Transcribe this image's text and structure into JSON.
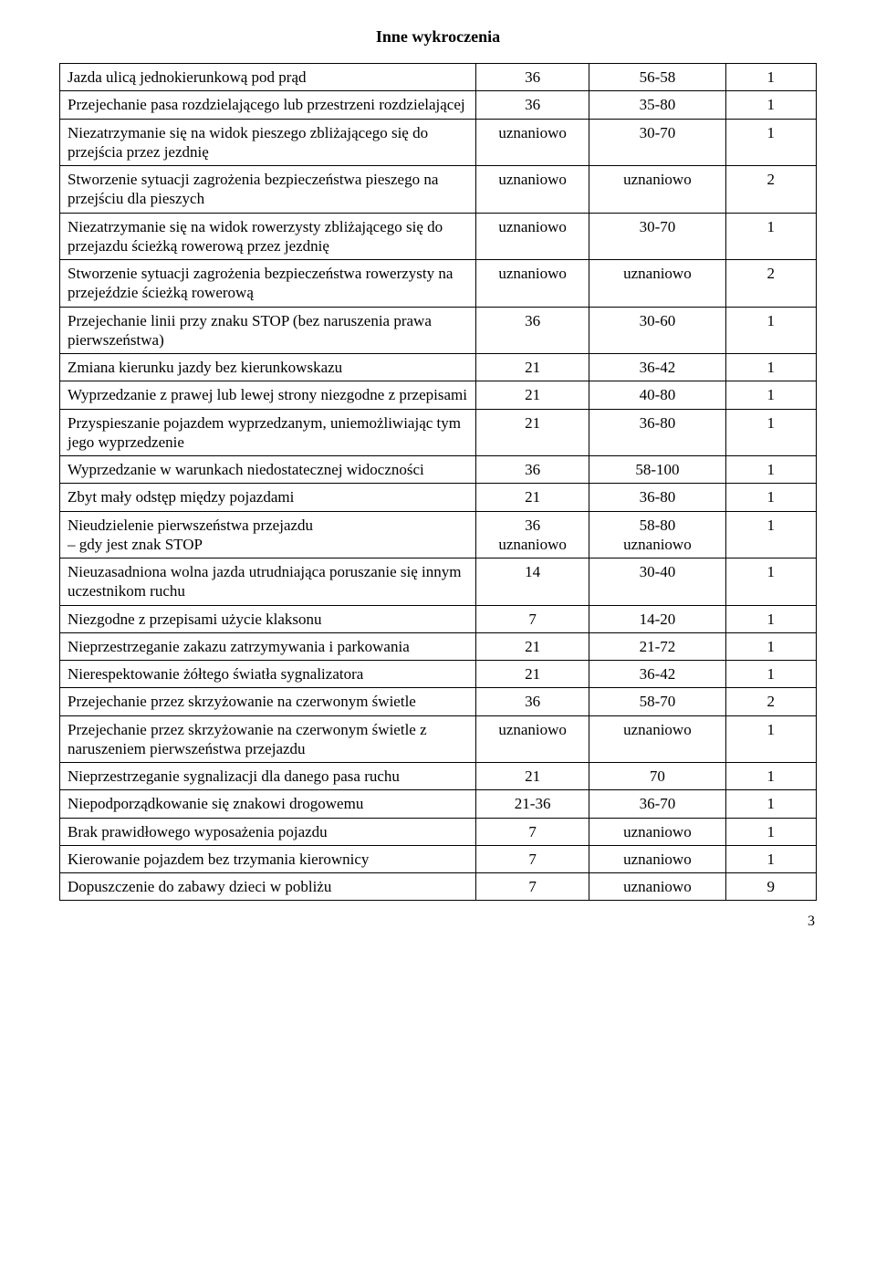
{
  "title": "Inne wykroczenia",
  "page_number": "3",
  "styles": {
    "font_family": "Times New Roman",
    "background_color": "#ffffff",
    "text_color": "#000000",
    "border_color": "#000000",
    "title_fontsize": 18,
    "cell_fontsize": 17,
    "columns": [
      {
        "name": "Opis",
        "width_pct": 55,
        "align": "left"
      },
      {
        "name": "Col1",
        "width_pct": 15,
        "align": "center"
      },
      {
        "name": "Col2",
        "width_pct": 18,
        "align": "center"
      },
      {
        "name": "Col3",
        "width_pct": 12,
        "align": "center"
      }
    ]
  },
  "rows": [
    {
      "desc": "Jazda ulicą jednokierunkową pod prąd",
      "c1": "36",
      "c2": "56-58",
      "c3": "1"
    },
    {
      "desc": "Przejechanie pasa rozdzielającego lub przestrzeni rozdzielającej",
      "c1": "36",
      "c2": "35-80",
      "c3": "1"
    },
    {
      "desc": "Niezatrzymanie się na widok pieszego zbliżającego się do przejścia przez jezdnię",
      "c1": "uznaniowo",
      "c2": "30-70",
      "c3": "1"
    },
    {
      "desc": "Stworzenie sytuacji zagrożenia bezpieczeństwa pieszego na przejściu dla pieszych",
      "c1": "uznaniowo",
      "c2": "uznaniowo",
      "c3": "2"
    },
    {
      "desc": "Niezatrzymanie się na widok rowerzysty zbliżającego się do przejazdu ścieżką rowerową przez jezdnię",
      "c1": "uznaniowo",
      "c2": "30-70",
      "c3": "1"
    },
    {
      "desc": "Stworzenie sytuacji zagrożenia bezpieczeństwa rowerzysty na przejeździe ścieżką rowerową",
      "c1": "uznaniowo",
      "c2": "uznaniowo",
      "c3": "2"
    },
    {
      "desc": "Przejechanie linii przy znaku STOP (bez naruszenia prawa pierwszeństwa)",
      "c1": "36",
      "c2": "30-60",
      "c3": "1"
    },
    {
      "desc": "Zmiana kierunku jazdy bez kierunkowskazu",
      "c1": "21",
      "c2": "36-42",
      "c3": "1"
    },
    {
      "desc": "Wyprzedzanie z prawej lub lewej strony niezgodne z przepisami",
      "c1": "21",
      "c2": "40-80",
      "c3": "1"
    },
    {
      "desc": "Przyspieszanie pojazdem wyprzedzanym, uniemożliwiając tym jego wyprzedzenie",
      "c1": "21",
      "c2": "36-80",
      "c3": "1"
    },
    {
      "desc": "Wyprzedzanie w warunkach niedostatecznej widoczności",
      "c1": "36",
      "c2": "58-100",
      "c3": "1"
    },
    {
      "desc": "Zbyt mały odstęp między pojazdami",
      "c1": "21",
      "c2": "36-80",
      "c3": "1"
    },
    {
      "desc": "Nieudzielenie pierwszeństwa przejazdu\n– gdy jest znak STOP",
      "c1": "36\nuznaniowo",
      "c2": "58-80\nuznaniowo",
      "c3": "1"
    },
    {
      "desc": "Nieuzasadniona wolna jazda utrudniająca poruszanie się innym uczestnikom ruchu",
      "c1": "14",
      "c2": "30-40",
      "c3": "1"
    },
    {
      "desc": "Niezgodne z przepisami użycie klaksonu",
      "c1": "7",
      "c2": "14-20",
      "c3": "1"
    },
    {
      "desc": "Nieprzestrzeganie zakazu zatrzymywania i parkowania",
      "c1": "21",
      "c2": "21-72",
      "c3": "1"
    },
    {
      "desc": "Nierespektowanie żółtego światła sygnalizatora",
      "c1": "21",
      "c2": "36-42",
      "c3": "1"
    },
    {
      "desc": "Przejechanie przez skrzyżowanie na czerwonym świetle",
      "c1": "36",
      "c2": "58-70",
      "c3": "2"
    },
    {
      "desc": "Przejechanie przez skrzyżowanie na czerwonym świetle z naruszeniem pierwszeństwa przejazdu",
      "c1": "uznaniowo",
      "c2": "uznaniowo",
      "c3": "1"
    },
    {
      "desc": "Nieprzestrzeganie sygnalizacji dla danego pasa ruchu",
      "c1": "21",
      "c2": "70",
      "c3": "1"
    },
    {
      "desc": "Niepodporządkowanie się znakowi drogowemu",
      "c1": "21-36",
      "c2": "36-70",
      "c3": "1"
    },
    {
      "desc": "Brak prawidłowego wyposażenia pojazdu",
      "c1": "7",
      "c2": "uznaniowo",
      "c3": "1"
    },
    {
      "desc": "Kierowanie pojazdem bez trzymania kierownicy",
      "c1": "7",
      "c2": "uznaniowo",
      "c3": "1"
    },
    {
      "desc": "Dopuszczenie do zabawy dzieci w pobliżu",
      "c1": "7",
      "c2": "uznaniowo",
      "c3": "9"
    }
  ]
}
